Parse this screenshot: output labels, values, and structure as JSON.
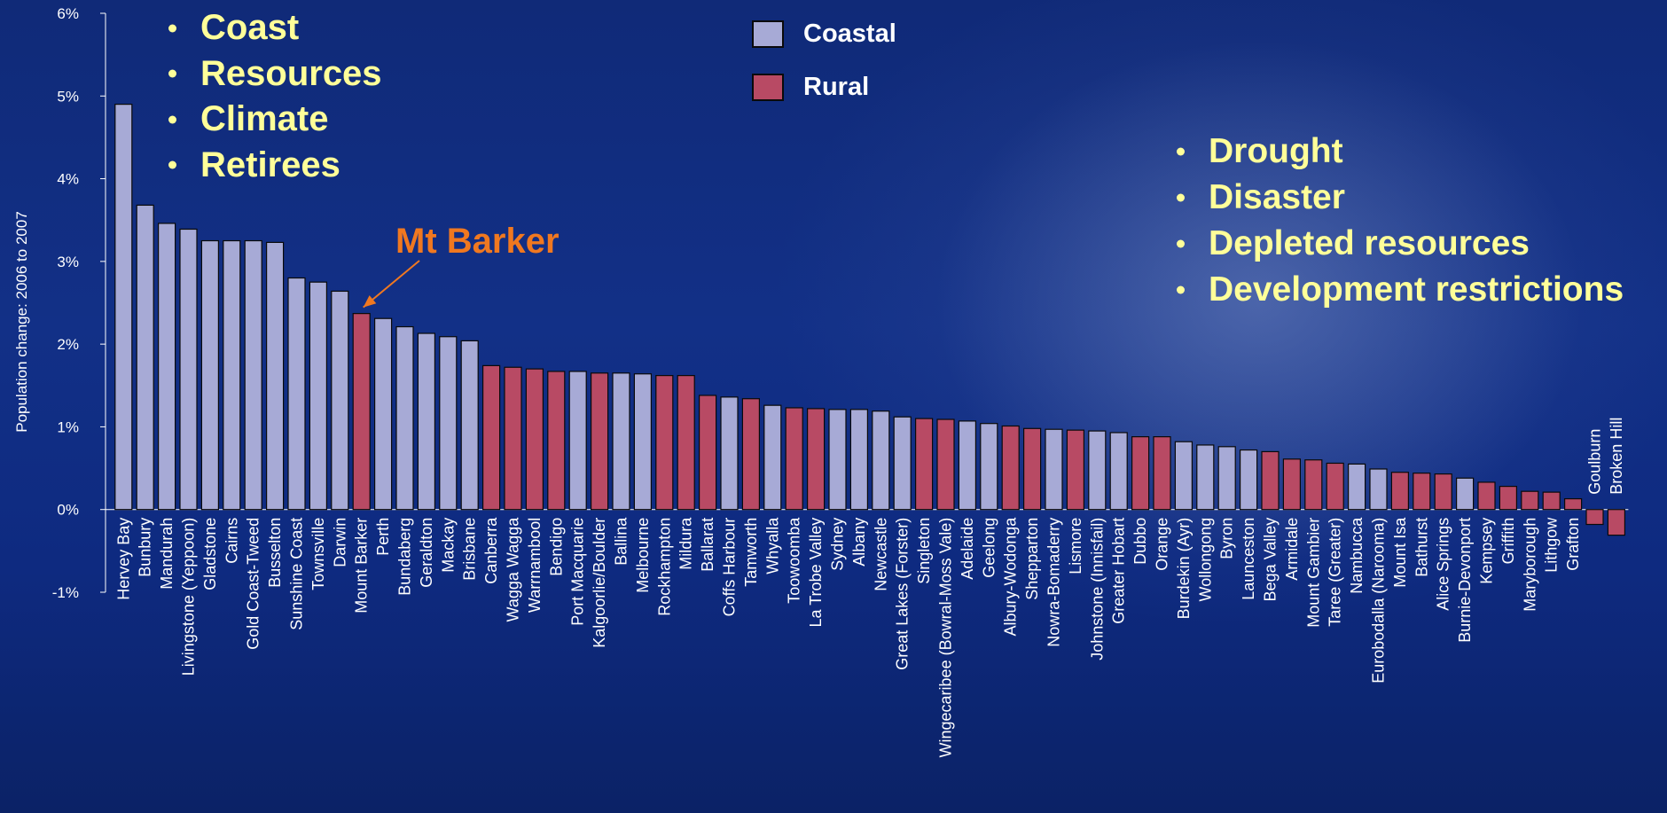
{
  "chart_data": {
    "type": "bar",
    "ylabel": "Population change: 2006 to 2007",
    "ylim": [
      -1,
      6
    ],
    "y_ticks": [
      "6%",
      "5%",
      "4%",
      "3%",
      "2%",
      "1%",
      "0%",
      "-1%"
    ],
    "grid": false,
    "legend_position": "top-center",
    "legend": [
      {
        "name": "Coastal",
        "color": "#a7aad6"
      },
      {
        "name": "Rural",
        "color": "#b84a64"
      }
    ],
    "categories": [
      "Hervey Bay",
      "Bunbury",
      "Mandurah",
      "Livingstone (Yeppoon)",
      "Gladstone",
      "Cairns",
      "Gold Coast-Tweed",
      "Busselton",
      "Sunshine Coast",
      "Townsville",
      "Darwin",
      "Mount Barker",
      "Perth",
      "Bundaberg",
      "Geraldton",
      "Mackay",
      "Brisbane",
      "Canberra",
      "Wagga Wagga",
      "Warrnambool",
      "Bendigo",
      "Port Macquarie",
      "Kalgoorlie/Boulder",
      "Ballina",
      "Melbourne",
      "Rockhampton",
      "Mildura",
      "Ballarat",
      "Coffs Harbour",
      "Tamworth",
      "Whyalla",
      "Toowoomba",
      "La Trobe Valley",
      "Sydney",
      "Albany",
      "Newcastle",
      "Great Lakes (Forster)",
      "Singleton",
      "Wingecaribee (Bowral-Moss Vale)",
      "Adelaide",
      "Geelong",
      "Albury-Wodonga",
      "Shepparton",
      "Nowra-Bomaderry",
      "Lismore",
      "Johnstone (Innisfail)",
      "Greater Hobart",
      "Dubbo",
      "Orange",
      "Burdekin (Ayr)",
      "Wollongong",
      "Byron",
      "Launceston",
      "Bega Valley",
      "Armidale",
      "Mount Gambier",
      "Taree (Greater)",
      "Nambucca",
      "Eurobodalla (Narooma)",
      "Mount Isa",
      "Bathurst",
      "Alice Springs",
      "Burnie-Devonport",
      "Kempsey",
      "Griffith",
      "Maryborough",
      "Lithgow",
      "Grafton",
      "Goulburn",
      "Broken Hill"
    ],
    "values": [
      4.9,
      3.68,
      3.46,
      3.39,
      3.25,
      3.25,
      3.25,
      3.23,
      2.8,
      2.75,
      2.64,
      2.37,
      2.31,
      2.21,
      2.13,
      2.09,
      2.04,
      1.74,
      1.72,
      1.7,
      1.67,
      1.67,
      1.65,
      1.65,
      1.64,
      1.62,
      1.62,
      1.38,
      1.36,
      1.34,
      1.26,
      1.23,
      1.22,
      1.21,
      1.21,
      1.19,
      1.12,
      1.1,
      1.09,
      1.07,
      1.04,
      1.01,
      0.98,
      0.97,
      0.96,
      0.95,
      0.93,
      0.88,
      0.88,
      0.82,
      0.78,
      0.76,
      0.72,
      0.7,
      0.61,
      0.6,
      0.56,
      0.55,
      0.49,
      0.45,
      0.44,
      0.43,
      0.38,
      0.33,
      0.28,
      0.22,
      0.21,
      0.13,
      -0.18,
      -0.31
    ],
    "types": [
      "Coastal",
      "Coastal",
      "Coastal",
      "Coastal",
      "Coastal",
      "Coastal",
      "Coastal",
      "Coastal",
      "Coastal",
      "Coastal",
      "Coastal",
      "Rural",
      "Coastal",
      "Coastal",
      "Coastal",
      "Coastal",
      "Coastal",
      "Rural",
      "Rural",
      "Rural",
      "Rural",
      "Coastal",
      "Rural",
      "Coastal",
      "Coastal",
      "Rural",
      "Rural",
      "Rural",
      "Coastal",
      "Rural",
      "Coastal",
      "Rural",
      "Rural",
      "Coastal",
      "Coastal",
      "Coastal",
      "Coastal",
      "Rural",
      "Rural",
      "Coastal",
      "Coastal",
      "Rural",
      "Rural",
      "Coastal",
      "Rural",
      "Coastal",
      "Coastal",
      "Rural",
      "Rural",
      "Coastal",
      "Coastal",
      "Coastal",
      "Coastal",
      "Rural",
      "Rural",
      "Rural",
      "Rural",
      "Coastal",
      "Coastal",
      "Rural",
      "Rural",
      "Rural",
      "Coastal",
      "Rural",
      "Rural",
      "Rural",
      "Rural",
      "Rural",
      "Rural",
      "Rural"
    ],
    "highlight": {
      "category": "Mount Barker",
      "label": "Mt Barker",
      "color": "#f07820"
    }
  },
  "bullets_left": [
    "Coast",
    "Resources",
    "Climate",
    "Retirees"
  ],
  "bullets_right": [
    "Drought",
    "Disaster",
    "Depleted resources",
    "Development restrictions"
  ],
  "colors": {
    "coastal": "#a7aad6",
    "rural": "#b84a64",
    "bullet_text": "#ffff99",
    "annotation": "#f07820"
  }
}
